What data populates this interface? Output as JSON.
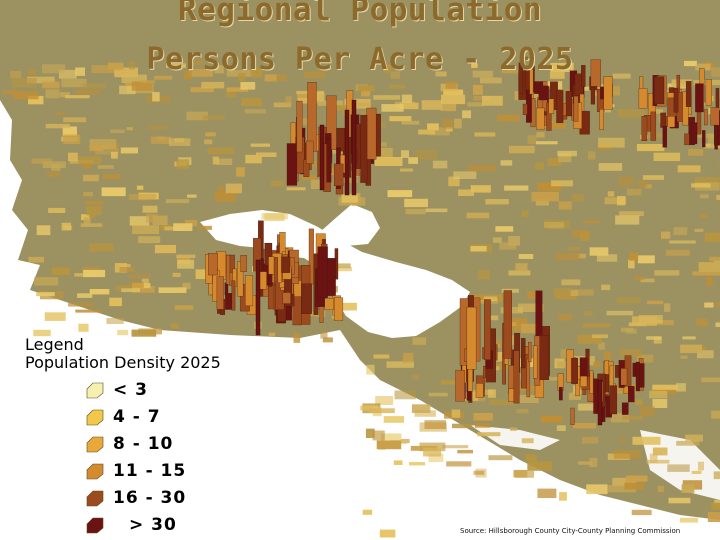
{
  "title_line1": "Regional Population",
  "title_line2": "Persons Per Acre - 2025",
  "legend": {
    "heading": "Legend",
    "subheading": "Population Density 2025",
    "classes": [
      {
        "label": "< 3",
        "color": "#f5efb0"
      },
      {
        "label": "4 - 7",
        "color": "#f2c84a"
      },
      {
        "label": "8 - 10",
        "color": "#e9a93a"
      },
      {
        "label": "11 - 15",
        "color": "#d68a2e"
      },
      {
        "label": "16 - 30",
        "color": "#9c4a1e"
      },
      {
        "label": "> 30",
        "color": "#6b1212"
      }
    ]
  },
  "source": "Source: Hillsborough County City-County Planning Commission",
  "colors": {
    "land": "#9c9261",
    "water": "#ffffff"
  }
}
